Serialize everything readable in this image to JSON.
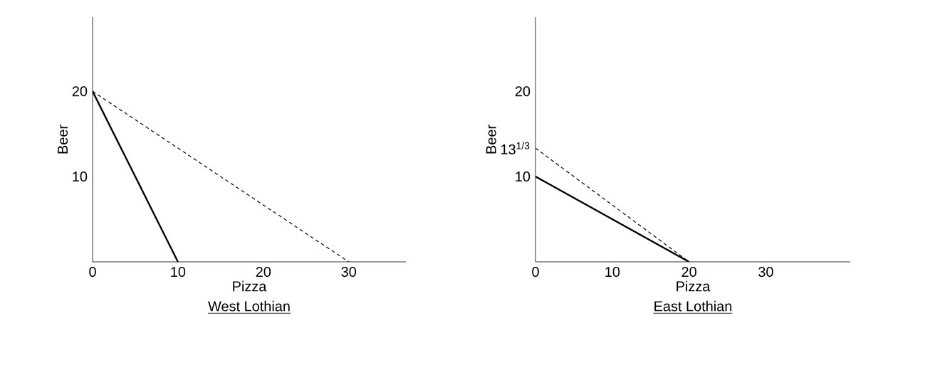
{
  "chart_data": [
    {
      "type": "line",
      "title": "West Lothian",
      "xlabel": "Pizza",
      "ylabel": "Beer",
      "xlim": [
        0,
        36.7
      ],
      "ylim": [
        0,
        28.7
      ],
      "xticks": [
        0,
        10,
        20,
        30
      ],
      "yticks": [
        10,
        20
      ],
      "grid": false,
      "marker": "none",
      "series": [
        {
          "color": "#000000",
          "line_style": "solid",
          "x": [
            0,
            10
          ],
          "values": [
            20,
            0
          ]
        },
        {
          "color": "#000000",
          "line_style": "dashed",
          "x": [
            0,
            30
          ],
          "values": [
            20,
            0
          ]
        }
      ]
    },
    {
      "type": "line",
      "title": "East Lothian",
      "xlabel": "Pizza",
      "ylabel": "Beer",
      "xlim": [
        0,
        41
      ],
      "ylim": [
        0,
        28.7
      ],
      "xticks": [
        0,
        10,
        20,
        30
      ],
      "yticks": [
        10,
        {
          "value": 13.33,
          "label": "13$^{1/3}$"
        },
        20
      ],
      "grid": false,
      "marker": "none",
      "series": [
        {
          "color": "#000000",
          "line_style": "solid",
          "x": [
            0,
            20
          ],
          "values": [
            10,
            0
          ]
        },
        {
          "color": "#000000",
          "line_style": "dashed",
          "x": [
            0,
            20
          ],
          "values": [
            13.33,
            0
          ]
        }
      ]
    }
  ]
}
